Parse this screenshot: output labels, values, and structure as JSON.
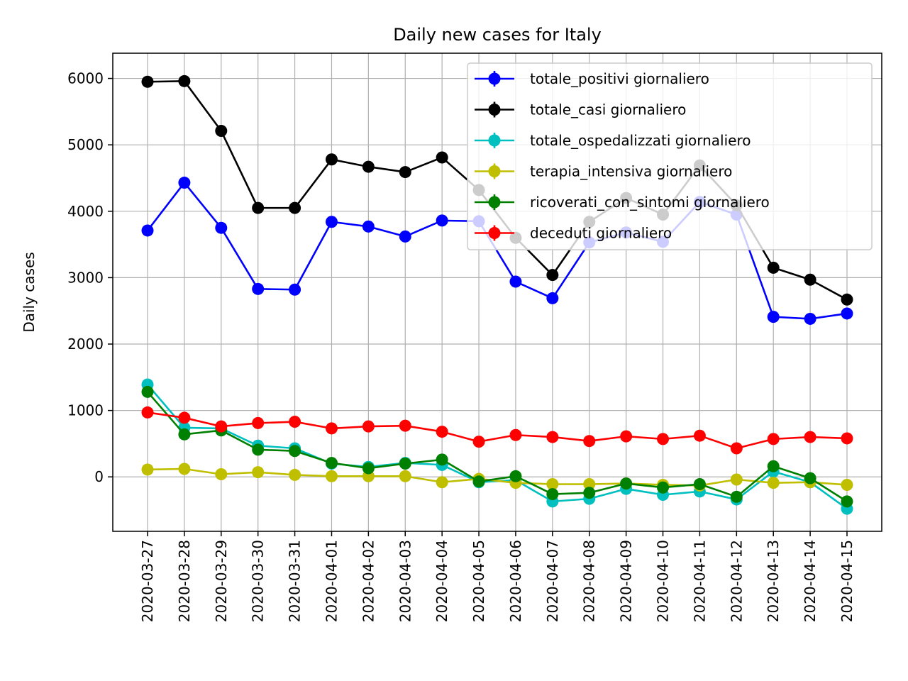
{
  "chart_data": {
    "type": "line",
    "title": "Daily new cases for Italy",
    "xlabel": "",
    "ylabel": "Daily cases",
    "categories": [
      "2020-03-27",
      "2020-03-28",
      "2020-03-29",
      "2020-03-30",
      "2020-03-31",
      "2020-04-01",
      "2020-04-02",
      "2020-04-03",
      "2020-04-04",
      "2020-04-05",
      "2020-04-06",
      "2020-04-07",
      "2020-04-08",
      "2020-04-09",
      "2020-04-10",
      "2020-04-11",
      "2020-04-12",
      "2020-04-13",
      "2020-04-14",
      "2020-04-15"
    ],
    "ylim": [
      -820,
      6380
    ],
    "yticks": [
      0,
      1000,
      2000,
      3000,
      4000,
      5000,
      6000
    ],
    "grid": true,
    "legend": "top-right",
    "series": [
      {
        "name": "totale_positivi giornaliero",
        "color": "#0000ff",
        "values": [
          3710,
          4430,
          3750,
          2830,
          2820,
          3840,
          3770,
          3620,
          3860,
          3850,
          2940,
          2690,
          3530,
          3680,
          3540,
          4140,
          3950,
          2410,
          2380,
          2460
        ]
      },
      {
        "name": "totale_casi giornaliero",
        "color": "#000000",
        "values": [
          5950,
          5960,
          5210,
          4050,
          4050,
          4780,
          4670,
          4590,
          4810,
          4320,
          3600,
          3040,
          3840,
          4200,
          3950,
          4690,
          4090,
          3150,
          2970,
          2670
        ]
      },
      {
        "name": "totale_ospedalizzati giornaliero",
        "color": "#00bfbf",
        "values": [
          1390,
          740,
          730,
          470,
          430,
          200,
          150,
          210,
          180,
          -80,
          -50,
          -370,
          -330,
          -180,
          -270,
          -220,
          -340,
          80,
          -80,
          -480
        ]
      },
      {
        "name": "terapia_intensiva giornaliero",
        "color": "#bfbf00",
        "values": [
          110,
          120,
          40,
          70,
          30,
          10,
          10,
          10,
          -80,
          -30,
          -90,
          -110,
          -110,
          -100,
          -120,
          -130,
          -40,
          -90,
          -80,
          -120
        ]
      },
      {
        "name": "ricoverati_con_sintomi giornaliero",
        "color": "#008000",
        "values": [
          1280,
          640,
          700,
          410,
          390,
          210,
          130,
          200,
          260,
          -70,
          10,
          -260,
          -240,
          -100,
          -160,
          -110,
          -300,
          160,
          -20,
          -370
        ]
      },
      {
        "name": "deceduti giornaliero",
        "color": "#ff0000",
        "values": [
          970,
          890,
          760,
          810,
          830,
          730,
          760,
          770,
          680,
          530,
          630,
          600,
          540,
          610,
          570,
          620,
          430,
          570,
          600,
          580
        ]
      }
    ]
  }
}
